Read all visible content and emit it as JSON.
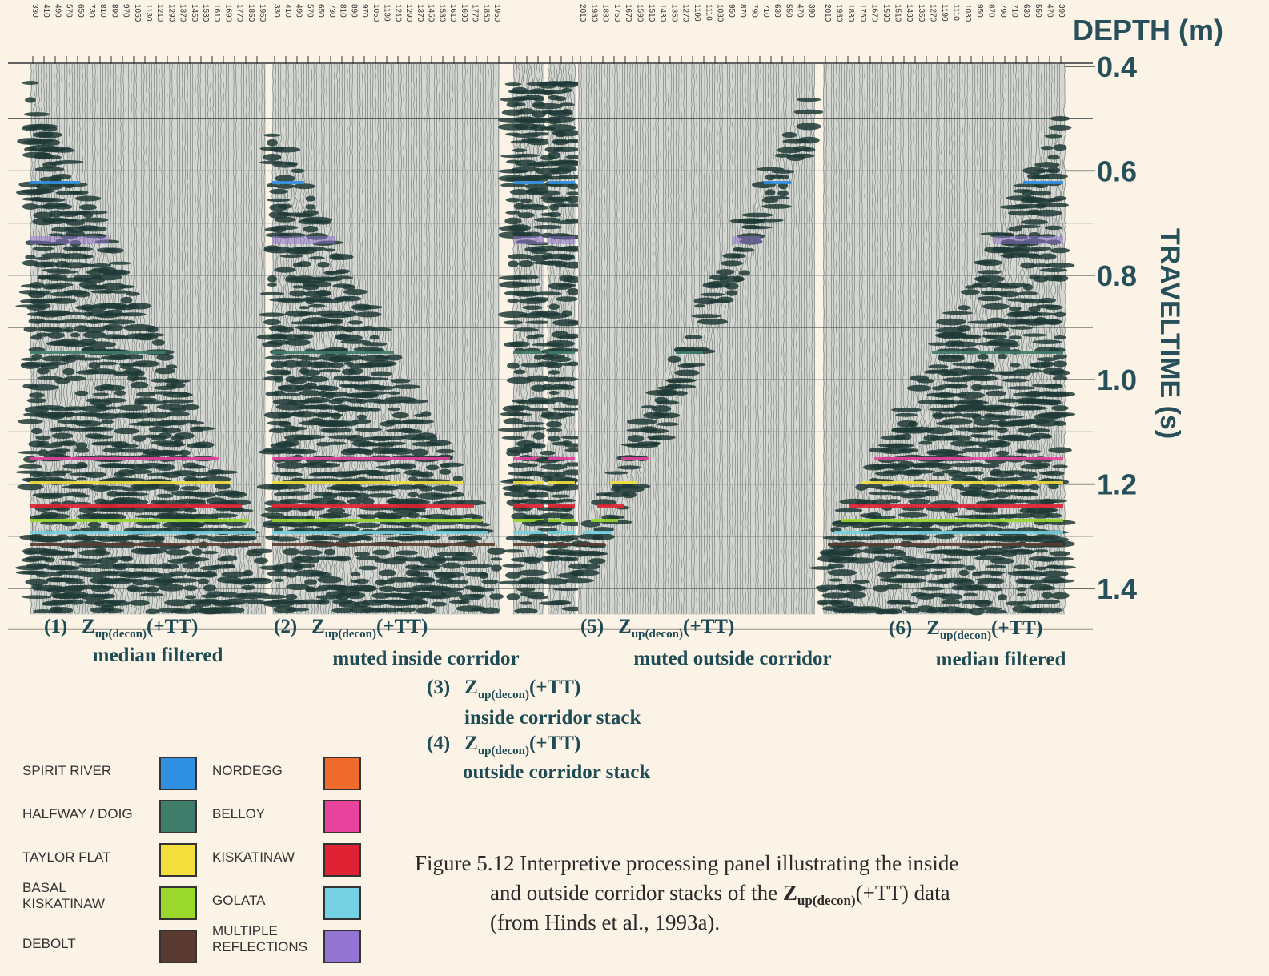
{
  "figure": {
    "depth_axis": {
      "title": "DEPTH (m)",
      "panels": [
        [
          330,
          410,
          490,
          570,
          650,
          730,
          810,
          890,
          970,
          1050,
          1130,
          1210,
          1290,
          1370,
          1450,
          1530,
          1610,
          1690,
          1770,
          1850,
          1950
        ],
        [
          330,
          410,
          490,
          570,
          650,
          730,
          810,
          890,
          970,
          1050,
          1130,
          1210,
          1290,
          1370,
          1450,
          1530,
          1610,
          1690,
          1770,
          1850,
          1950
        ],
        [
          2010,
          1930,
          1830,
          1750,
          1670,
          1590,
          1510,
          1430,
          1350,
          1270,
          1190,
          1110,
          1030,
          950,
          870,
          790,
          710,
          630,
          550,
          470,
          390
        ],
        [
          2010,
          1930,
          1830,
          1750,
          1670,
          1590,
          1510,
          1430,
          1350,
          1270,
          1190,
          1110,
          1030,
          950,
          870,
          790,
          710,
          630,
          550,
          470,
          390
        ]
      ]
    },
    "time_axis": {
      "title": "TRAVELTIME (s)",
      "ylim": [
        0.4,
        1.45
      ],
      "yticks": [
        0.4,
        0.6,
        0.8,
        1.0,
        1.2,
        1.4
      ],
      "grid_step": 0.1
    },
    "panel_captions": [
      {
        "number": "(1)",
        "symbol": "Z",
        "subscript": "up(decon)",
        "suffix": "(+TT)",
        "description": "median filtered"
      },
      {
        "number": "(2)",
        "symbol": "Z",
        "subscript": "up(decon)",
        "suffix": "(+TT)",
        "description": "muted inside corridor"
      },
      {
        "number": "(5)",
        "symbol": "Z",
        "subscript": "up(decon)",
        "suffix": "(+TT)",
        "description": "muted outside corridor"
      },
      {
        "number": "(6)",
        "symbol": "Z",
        "subscript": "up(decon)",
        "suffix": "(+TT)",
        "description": "median filtered"
      },
      {
        "number": "(3)",
        "symbol": "Z",
        "subscript": "up(decon)",
        "suffix": "(+TT)",
        "description": "inside corridor stack"
      },
      {
        "number": "(4)",
        "symbol": "Z",
        "subscript": "up(decon)",
        "suffix": "(+TT)",
        "description": "outside corridor stack"
      }
    ],
    "legend": [
      {
        "label": [
          "SPIRIT RIVER"
        ],
        "color": "#2f8fe0"
      },
      {
        "label": [
          "HALFWAY / DOIG"
        ],
        "color": "#3f7c6a"
      },
      {
        "label": [
          "TAYLOR FLAT"
        ],
        "color": "#f3df3c"
      },
      {
        "label": [
          "BASAL",
          "KISKATINAW"
        ],
        "color": "#9ad82c"
      },
      {
        "label": [
          "DEBOLT"
        ],
        "color": "#5b3b31"
      },
      {
        "label": [
          "NORDEGG"
        ],
        "color": "#f06b2c"
      },
      {
        "label": [
          "BELLOY"
        ],
        "color": "#e8429c"
      },
      {
        "label": [
          "KISKATINAW"
        ],
        "color": "#de2233"
      },
      {
        "label": [
          "GOLATA"
        ],
        "color": "#74d2e2"
      },
      {
        "label": [
          "MULTIPLE",
          "REFLECTIONS"
        ],
        "color": "#9474d2"
      }
    ],
    "caption": {
      "line1": "Figure 5.12  Interpretive processing panel illustrating the inside",
      "line2_before": "and outside corridor stacks of the ",
      "line2_symbol": "Z",
      "line2_subscript": "up(decon)",
      "line2_after": "(+TT) data",
      "line3": "(from Hinds et al., 1993a)."
    }
  }
}
